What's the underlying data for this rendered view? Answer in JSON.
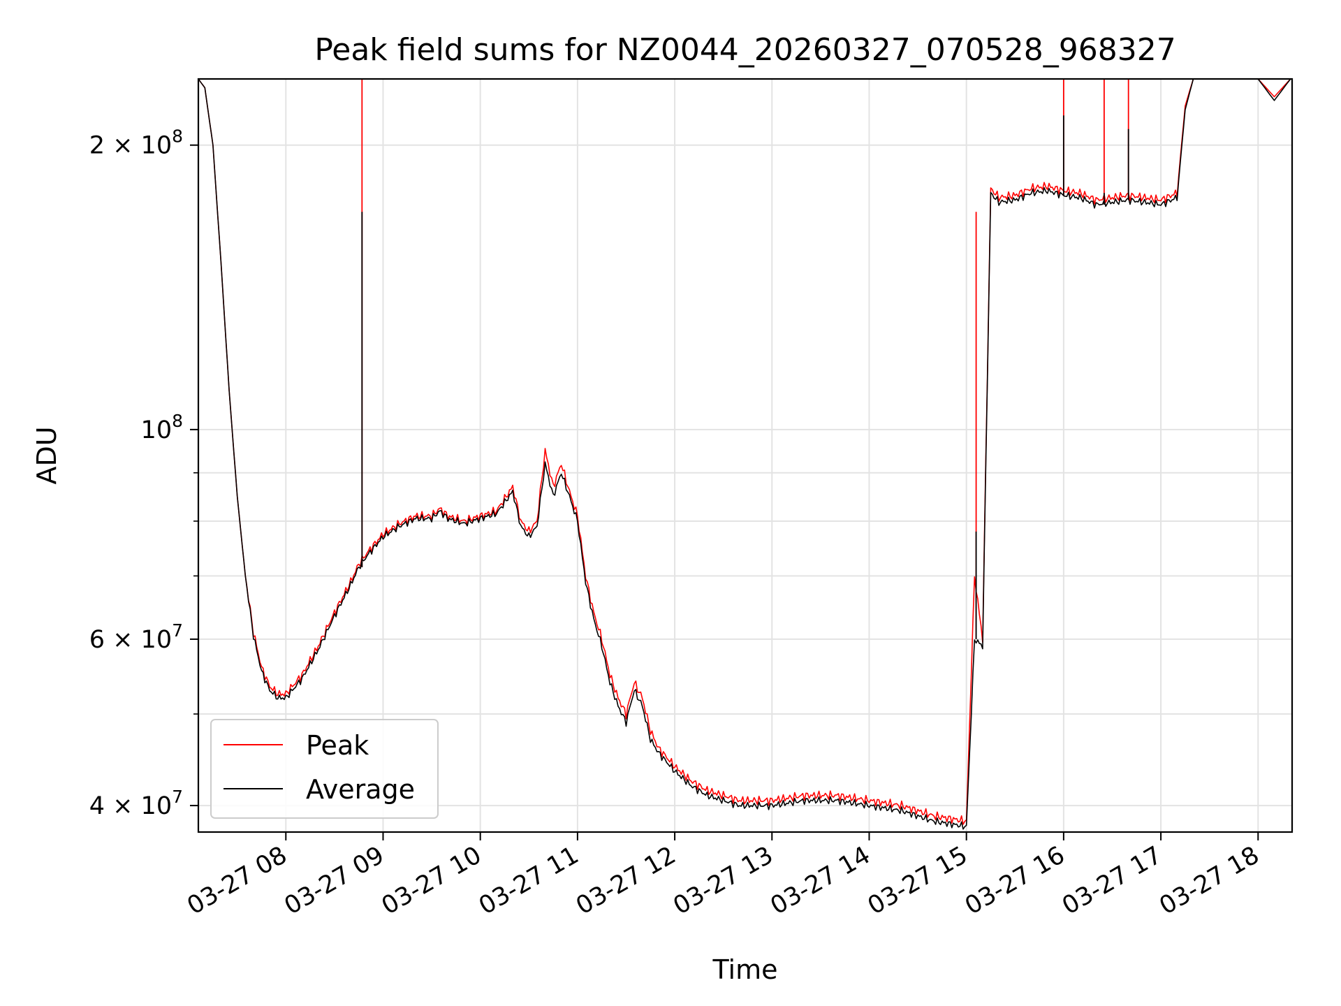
{
  "chart_data": {
    "type": "line",
    "title": "Peak field sums for NZ0044_20260327_070528_968327",
    "xlabel": "Time",
    "ylabel": "ADU",
    "yscale": "log",
    "ylim": [
      37500000,
      235000000
    ],
    "xlim": [
      "03-27 07:06",
      "03-27 18:21"
    ],
    "grid": true,
    "legend_position": "lower left",
    "x_ticks": [
      "03-27 08",
      "03-27 09",
      "03-27 10",
      "03-27 11",
      "03-27 12",
      "03-27 13",
      "03-27 14",
      "03-27 15",
      "03-27 16",
      "03-27 17",
      "03-27 18"
    ],
    "y_ticks": [
      {
        "value": 40000000,
        "mantissa": "4",
        "exponent": "7"
      },
      {
        "value": 60000000,
        "mantissa": "6",
        "exponent": "7"
      },
      {
        "value": 100000000,
        "mantissa": "",
        "exponent": "8"
      },
      {
        "value": 200000000,
        "mantissa": "2",
        "exponent": "8"
      }
    ],
    "colors": {
      "peak": "#ff0000",
      "average": "#000000",
      "grid": "#e3e3e3"
    },
    "x": [
      "07:06",
      "07:10",
      "07:15",
      "07:20",
      "07:25",
      "07:30",
      "07:35",
      "07:40",
      "07:45",
      "07:50",
      "07:55",
      "08:00",
      "08:10",
      "08:20",
      "08:30",
      "08:40",
      "08:45",
      "08:50",
      "09:00",
      "09:10",
      "09:20",
      "09:30",
      "09:35",
      "09:40",
      "09:50",
      "10:00",
      "10:10",
      "10:20",
      "10:25",
      "10:30",
      "10:35",
      "10:40",
      "10:45",
      "10:50",
      "10:55",
      "11:00",
      "11:05",
      "11:10",
      "11:15",
      "11:20",
      "11:25",
      "11:30",
      "11:35",
      "11:40",
      "11:45",
      "11:50",
      "12:00",
      "12:10",
      "12:20",
      "12:30",
      "12:40",
      "13:00",
      "13:20",
      "13:40",
      "14:00",
      "14:20",
      "14:40",
      "15:00",
      "15:05",
      "15:10",
      "15:15",
      "15:20",
      "15:30",
      "15:40",
      "15:50",
      "16:00",
      "16:10",
      "16:20",
      "16:30",
      "16:40",
      "16:50",
      "17:00",
      "17:10",
      "17:15",
      "17:20",
      "17:30",
      "17:40",
      "17:50",
      "18:00",
      "18:10",
      "18:20"
    ],
    "series": [
      {
        "name": "Peak",
        "values": [
          235000000,
          230000000,
          200000000,
          150000000,
          110000000,
          85000000,
          70000000,
          61000000,
          56000000,
          53500000,
          52500000,
          52500000,
          55000000,
          59000000,
          64000000,
          69000000,
          72000000,
          74000000,
          77500000,
          79500000,
          81000000,
          81000000,
          82500000,
          81000000,
          80000000,
          81000000,
          82000000,
          87000000,
          80000000,
          78000000,
          80000000,
          95000000,
          87000000,
          92000000,
          86000000,
          81000000,
          70000000,
          64000000,
          60000000,
          55000000,
          52000000,
          50000000,
          54000000,
          52000000,
          48000000,
          46000000,
          44000000,
          42500000,
          41500000,
          41000000,
          40500000,
          40500000,
          41000000,
          41000000,
          40500000,
          40000000,
          39000000,
          38500000,
          70000000,
          60000000,
          180000000,
          176000000,
          177000000,
          180000000,
          181000000,
          179000000,
          178000000,
          175000000,
          176000000,
          177000000,
          176000000,
          175000000,
          178000000,
          220000000,
          235000000,
          235000000,
          235000000,
          235000000,
          235000000,
          225000000,
          235000000
        ]
      },
      {
        "name": "Average",
        "values": [
          235000000,
          230000000,
          200000000,
          150000000,
          110000000,
          85000000,
          70000000,
          60500000,
          55500000,
          53000000,
          52000000,
          52000000,
          54500000,
          58500000,
          63500000,
          68500000,
          71500000,
          73500000,
          77000000,
          79000000,
          80500000,
          80500000,
          82000000,
          80500000,
          79500000,
          80500000,
          81500000,
          86000000,
          79000000,
          77000000,
          79000000,
          92000000,
          85000000,
          90000000,
          85000000,
          80000000,
          69000000,
          63000000,
          59000000,
          54000000,
          51000000,
          49000000,
          53000000,
          51000000,
          47000000,
          45500000,
          43500000,
          42000000,
          41000000,
          40500000,
          40000000,
          40000000,
          40500000,
          40500000,
          40000000,
          39500000,
          38500000,
          38000000,
          60000000,
          59000000,
          178000000,
          174000000,
          175000000,
          178000000,
          179000000,
          177000000,
          176000000,
          173000000,
          174000000,
          175000000,
          174000000,
          173000000,
          176000000,
          218000000,
          235000000,
          235000000,
          235000000,
          235000000,
          235000000,
          223000000,
          235000000
        ]
      }
    ],
    "spikes": [
      {
        "x": "08:47",
        "peak": 235000000,
        "average": 170000000
      },
      {
        "x": "15:06",
        "peak": 170000000,
        "average": 78000000
      },
      {
        "x": "16:00",
        "peak": 235000000,
        "average": 215000000
      },
      {
        "x": "16:25",
        "peak": 235000000,
        "average": 178000000
      },
      {
        "x": "16:40",
        "peak": 235000000,
        "average": 208000000
      }
    ]
  }
}
